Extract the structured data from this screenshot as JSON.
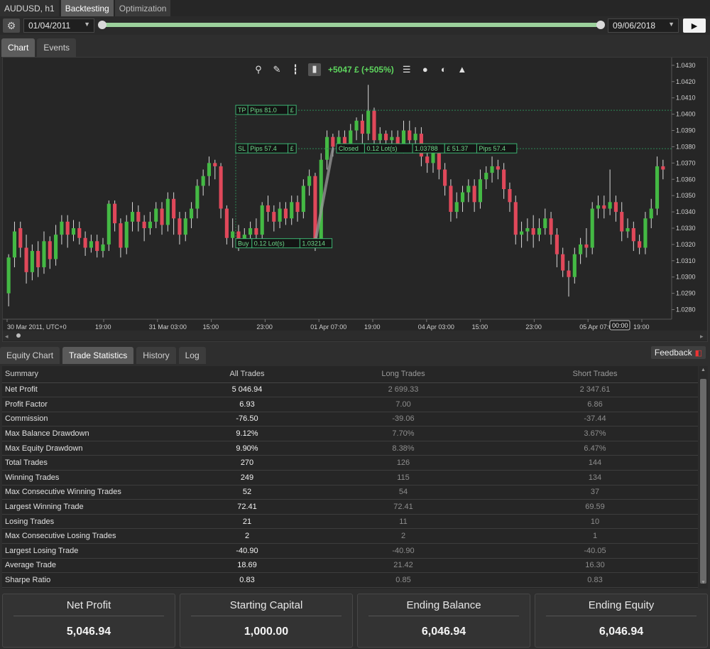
{
  "header": {
    "symbol": "AUDUSD, h1",
    "tabs": [
      "Backtesting",
      "Optimization"
    ]
  },
  "datebar": {
    "start_date": "01/04/2011",
    "end_date": "09/06/2018",
    "play_icon": "play-icon",
    "settings_icon": "gear-icon"
  },
  "chart_tabs": [
    "Chart",
    "Events"
  ],
  "chart_toolbar": {
    "profit": "+5047 £ (+505%)",
    "icons": [
      "zoom-icon",
      "draw-icon",
      "candles-icon",
      "chart-type-icon",
      "list-icon",
      "settings-icon",
      "palette-icon",
      "person-icon"
    ]
  },
  "colors": {
    "bull": "#44b944",
    "bear": "#e0485a",
    "profit_text": "#5ed65e",
    "level_line": "#2e8b57"
  },
  "chart_data": {
    "type": "candlestick",
    "price_axis": [
      "1.0430",
      "1.0420",
      "1.0410",
      "1.0400",
      "1.0390",
      "1.0380",
      "1.0370",
      "1.0360",
      "1.0350",
      "1.0340",
      "1.0330",
      "1.0320",
      "1.0310",
      "1.0300",
      "1.0290",
      "1.0280"
    ],
    "ylim": [
      1.0275,
      1.0433
    ],
    "time_axis": [
      "30 Mar 2011, UTC+0",
      "19:00",
      "31 Mar 03:00",
      "15:00",
      "23:00",
      "01 Apr 07:00",
      "19:00",
      "04 Apr 03:00",
      "15:00",
      "23:00",
      "05 Apr 07:00",
      "19:00"
    ],
    "cursor_label": "00:00",
    "candles": [
      [
        1.029,
        1.0312,
        1.0282,
        1.0314
      ],
      [
        1.0312,
        1.0328,
        1.0306,
        1.0334
      ],
      [
        1.033,
        1.0318,
        1.0312,
        1.0334
      ],
      [
        1.0318,
        1.0303,
        1.0296,
        1.0326
      ],
      [
        1.0303,
        1.0316,
        1.0298,
        1.032
      ],
      [
        1.0316,
        1.0306,
        1.03,
        1.0322
      ],
      [
        1.0306,
        1.0322,
        1.0302,
        1.0328
      ],
      [
        1.0322,
        1.0311,
        1.0305,
        1.0325
      ],
      [
        1.0311,
        1.0326,
        1.0307,
        1.0332
      ],
      [
        1.0326,
        1.0334,
        1.032,
        1.0338
      ],
      [
        1.0334,
        1.0326,
        1.0318,
        1.0338
      ],
      [
        1.0326,
        1.033,
        1.0322,
        1.0335
      ],
      [
        1.033,
        1.0324,
        1.032,
        1.0334
      ],
      [
        1.0324,
        1.0318,
        1.0313,
        1.0328
      ],
      [
        1.0318,
        1.0322,
        1.0315,
        1.0326
      ],
      [
        1.0322,
        1.0316,
        1.0312,
        1.0326
      ],
      [
        1.0316,
        1.032,
        1.0312,
        1.0324
      ],
      [
        1.032,
        1.0345,
        1.0316,
        1.0347
      ],
      [
        1.0345,
        1.0333,
        1.0328,
        1.0347
      ],
      [
        1.0333,
        1.0318,
        1.0312,
        1.0336
      ],
      [
        1.0318,
        1.0334,
        1.0314,
        1.0338
      ],
      [
        1.0334,
        1.034,
        1.0328,
        1.0346
      ],
      [
        1.034,
        1.0334,
        1.0328,
        1.0344
      ],
      [
        1.0334,
        1.033,
        1.0322,
        1.0338
      ],
      [
        1.033,
        1.0334,
        1.0326,
        1.034
      ],
      [
        1.0334,
        1.0342,
        1.033,
        1.0346
      ],
      [
        1.0342,
        1.0332,
        1.0326,
        1.0346
      ],
      [
        1.0332,
        1.0348,
        1.0328,
        1.0352
      ],
      [
        1.0348,
        1.0336,
        1.0326,
        1.0352
      ],
      [
        1.0336,
        1.0326,
        1.032,
        1.034
      ],
      [
        1.0326,
        1.0336,
        1.0322,
        1.034
      ],
      [
        1.0336,
        1.0342,
        1.033,
        1.0346
      ],
      [
        1.0342,
        1.0356,
        1.0336,
        1.036
      ],
      [
        1.0356,
        1.0362,
        1.035,
        1.0366
      ],
      [
        1.0362,
        1.037,
        1.0356,
        1.0374
      ],
      [
        1.037,
        1.0368,
        1.036,
        1.0372
      ],
      [
        1.0368,
        1.0342,
        1.0336,
        1.037
      ],
      [
        1.0342,
        1.0324,
        1.032,
        1.0344
      ],
      [
        1.0324,
        1.0328,
        1.0318,
        1.0336
      ],
      [
        1.0328,
        1.0322,
        1.0316,
        1.0332
      ],
      [
        1.0322,
        1.0326,
        1.0318,
        1.033
      ],
      [
        1.0326,
        1.033,
        1.032,
        1.0334
      ],
      [
        1.033,
        1.0326,
        1.0322,
        1.0336
      ],
      [
        1.0326,
        1.0344,
        1.0322,
        1.0346
      ],
      [
        1.0344,
        1.034,
        1.0334,
        1.035
      ],
      [
        1.034,
        1.0334,
        1.0328,
        1.0344
      ],
      [
        1.0334,
        1.0342,
        1.033,
        1.0346
      ],
      [
        1.0342,
        1.0336,
        1.0332,
        1.0346
      ],
      [
        1.0336,
        1.0346,
        1.0332,
        1.035
      ],
      [
        1.0346,
        1.034,
        1.0334,
        1.035
      ],
      [
        1.034,
        1.0356,
        1.0336,
        1.036
      ],
      [
        1.0356,
        1.0362,
        1.035,
        1.0366
      ],
      [
        1.0362,
        1.032,
        1.0316,
        1.0364
      ],
      [
        1.032,
        1.0372,
        1.0318,
        1.0376
      ],
      [
        1.0372,
        1.0386,
        1.0366,
        1.039
      ],
      [
        1.0386,
        1.038,
        1.0374,
        1.0388
      ],
      [
        1.038,
        1.0386,
        1.0376,
        1.039
      ],
      [
        1.0386,
        1.0382,
        1.0378,
        1.039
      ],
      [
        1.0382,
        1.039,
        1.0378,
        1.0394
      ],
      [
        1.039,
        1.0396,
        1.0384,
        1.0398
      ],
      [
        1.0396,
        1.0388,
        1.0382,
        1.04
      ],
      [
        1.0388,
        1.0402,
        1.0384,
        1.0418
      ],
      [
        1.0402,
        1.0384,
        1.038,
        1.0404
      ],
      [
        1.0384,
        1.0388,
        1.038,
        1.0392
      ],
      [
        1.0388,
        1.0384,
        1.038,
        1.039
      ],
      [
        1.0384,
        1.0386,
        1.038,
        1.039
      ],
      [
        1.0386,
        1.038,
        1.0376,
        1.039
      ],
      [
        1.038,
        1.039,
        1.0376,
        1.0396
      ],
      [
        1.039,
        1.0384,
        1.038,
        1.0396
      ],
      [
        1.0384,
        1.0388,
        1.038,
        1.0392
      ],
      [
        1.0388,
        1.0374,
        1.0368,
        1.0392
      ],
      [
        1.0374,
        1.037,
        1.0364,
        1.038
      ],
      [
        1.037,
        1.0376,
        1.0364,
        1.038
      ],
      [
        1.0376,
        1.0366,
        1.036,
        1.038
      ],
      [
        1.0366,
        1.0356,
        1.035,
        1.037
      ],
      [
        1.0356,
        1.034,
        1.0334,
        1.036
      ],
      [
        1.034,
        1.0346,
        1.0336,
        1.0352
      ],
      [
        1.0346,
        1.0352,
        1.034,
        1.0356
      ],
      [
        1.0352,
        1.0356,
        1.0346,
        1.036
      ],
      [
        1.0356,
        1.0346,
        1.034,
        1.036
      ],
      [
        1.0346,
        1.036,
        1.0342,
        1.0366
      ],
      [
        1.036,
        1.0364,
        1.0354,
        1.0368
      ],
      [
        1.0364,
        1.0368,
        1.0358,
        1.0374
      ],
      [
        1.0368,
        1.0366,
        1.036,
        1.0372
      ],
      [
        1.0366,
        1.0354,
        1.0348,
        1.037
      ],
      [
        1.0354,
        1.0346,
        1.034,
        1.0358
      ],
      [
        1.0346,
        1.0326,
        1.032,
        1.035
      ],
      [
        1.0326,
        1.0328,
        1.0318,
        1.0334
      ],
      [
        1.0328,
        1.033,
        1.0322,
        1.0336
      ],
      [
        1.033,
        1.0326,
        1.0318,
        1.0338
      ],
      [
        1.0326,
        1.033,
        1.0322,
        1.0336
      ],
      [
        1.033,
        1.0336,
        1.0326,
        1.0342
      ],
      [
        1.0336,
        1.0326,
        1.032,
        1.034
      ],
      [
        1.0326,
        1.0314,
        1.0306,
        1.033
      ],
      [
        1.0314,
        1.0304,
        1.03,
        1.0318
      ],
      [
        1.0304,
        1.03,
        1.0288,
        1.031
      ],
      [
        1.03,
        1.0314,
        1.0296,
        1.0318
      ],
      [
        1.0314,
        1.032,
        1.0308,
        1.0324
      ],
      [
        1.032,
        1.0318,
        1.0312,
        1.033
      ],
      [
        1.0318,
        1.0342,
        1.0314,
        1.0346
      ],
      [
        1.0342,
        1.0344,
        1.0336,
        1.035
      ],
      [
        1.0344,
        1.0342,
        1.0336,
        1.035
      ],
      [
        1.0342,
        1.0346,
        1.0338,
        1.0366
      ],
      [
        1.0346,
        1.034,
        1.0334,
        1.035
      ],
      [
        1.034,
        1.0328,
        1.0322,
        1.0346
      ],
      [
        1.0328,
        1.033,
        1.0324,
        1.0336
      ],
      [
        1.033,
        1.0322,
        1.0316,
        1.0334
      ],
      [
        1.0322,
        1.0318,
        1.0314,
        1.0326
      ],
      [
        1.0318,
        1.0336,
        1.0314,
        1.034
      ],
      [
        1.0336,
        1.0342,
        1.033,
        1.0348
      ],
      [
        1.0342,
        1.0368,
        1.0338,
        1.0374
      ],
      [
        1.0368,
        1.0366,
        1.036,
        1.0372
      ]
    ],
    "trade": {
      "entry_label": [
        "Buy",
        "0.12 Lot(s)",
        "1.03214"
      ],
      "tp_label": [
        "TP",
        "Pips 81.0",
        "£"
      ],
      "sl_label": [
        "SL",
        "Pips 57.4",
        "£"
      ],
      "close_label": [
        "Closed",
        "0.12 Lot(s)",
        "1.03788",
        "£ 51.37",
        "Pips 57.4"
      ],
      "tp_price": 1.04024,
      "close_price": 1.03788,
      "entry_price": 1.03214
    }
  },
  "lower_tabs": [
    "Equity Chart",
    "Trade Statistics",
    "History",
    "Log"
  ],
  "feedback": {
    "label": "Feedback",
    "icon": "chat-bubble-icon"
  },
  "stats": {
    "headers": [
      "Summary",
      "All Trades",
      "Long Trades",
      "Short Trades"
    ],
    "rows": [
      [
        "Net Profit",
        "5 046.94",
        "2 699.33",
        "2 347.61"
      ],
      [
        "Profit Factor",
        "6.93",
        "7.00",
        "6.86"
      ],
      [
        "Commission",
        "-76.50",
        "-39.06",
        "-37.44"
      ],
      [
        "Max Balance Drawdown",
        "9.12%",
        "7.70%",
        "3.67%"
      ],
      [
        "Max Equity Drawdown",
        "9.90%",
        "8.38%",
        "6.47%"
      ],
      [
        "Total Trades",
        "270",
        "126",
        "144"
      ],
      [
        "Winning Trades",
        "249",
        "115",
        "134"
      ],
      [
        "Max Consecutive Winning Trades",
        "52",
        "54",
        "37"
      ],
      [
        "Largest Winning Trade",
        "72.41",
        "72.41",
        "69.59"
      ],
      [
        "Losing Trades",
        "21",
        "11",
        "10"
      ],
      [
        "Max Consecutive Losing Trades",
        "2",
        "2",
        "1"
      ],
      [
        "Largest Losing Trade",
        "-40.90",
        "-40.90",
        "-40.05"
      ],
      [
        "Average Trade",
        "18.69",
        "21.42",
        "16.30"
      ],
      [
        "Sharpe Ratio",
        "0.83",
        "0.85",
        "0.83"
      ]
    ]
  },
  "cards": [
    {
      "title": "Net Profit",
      "value": "5,046.94"
    },
    {
      "title": "Starting Capital",
      "value": "1,000.00"
    },
    {
      "title": "Ending Balance",
      "value": "6,046.94"
    },
    {
      "title": "Ending Equity",
      "value": "6,046.94"
    }
  ]
}
